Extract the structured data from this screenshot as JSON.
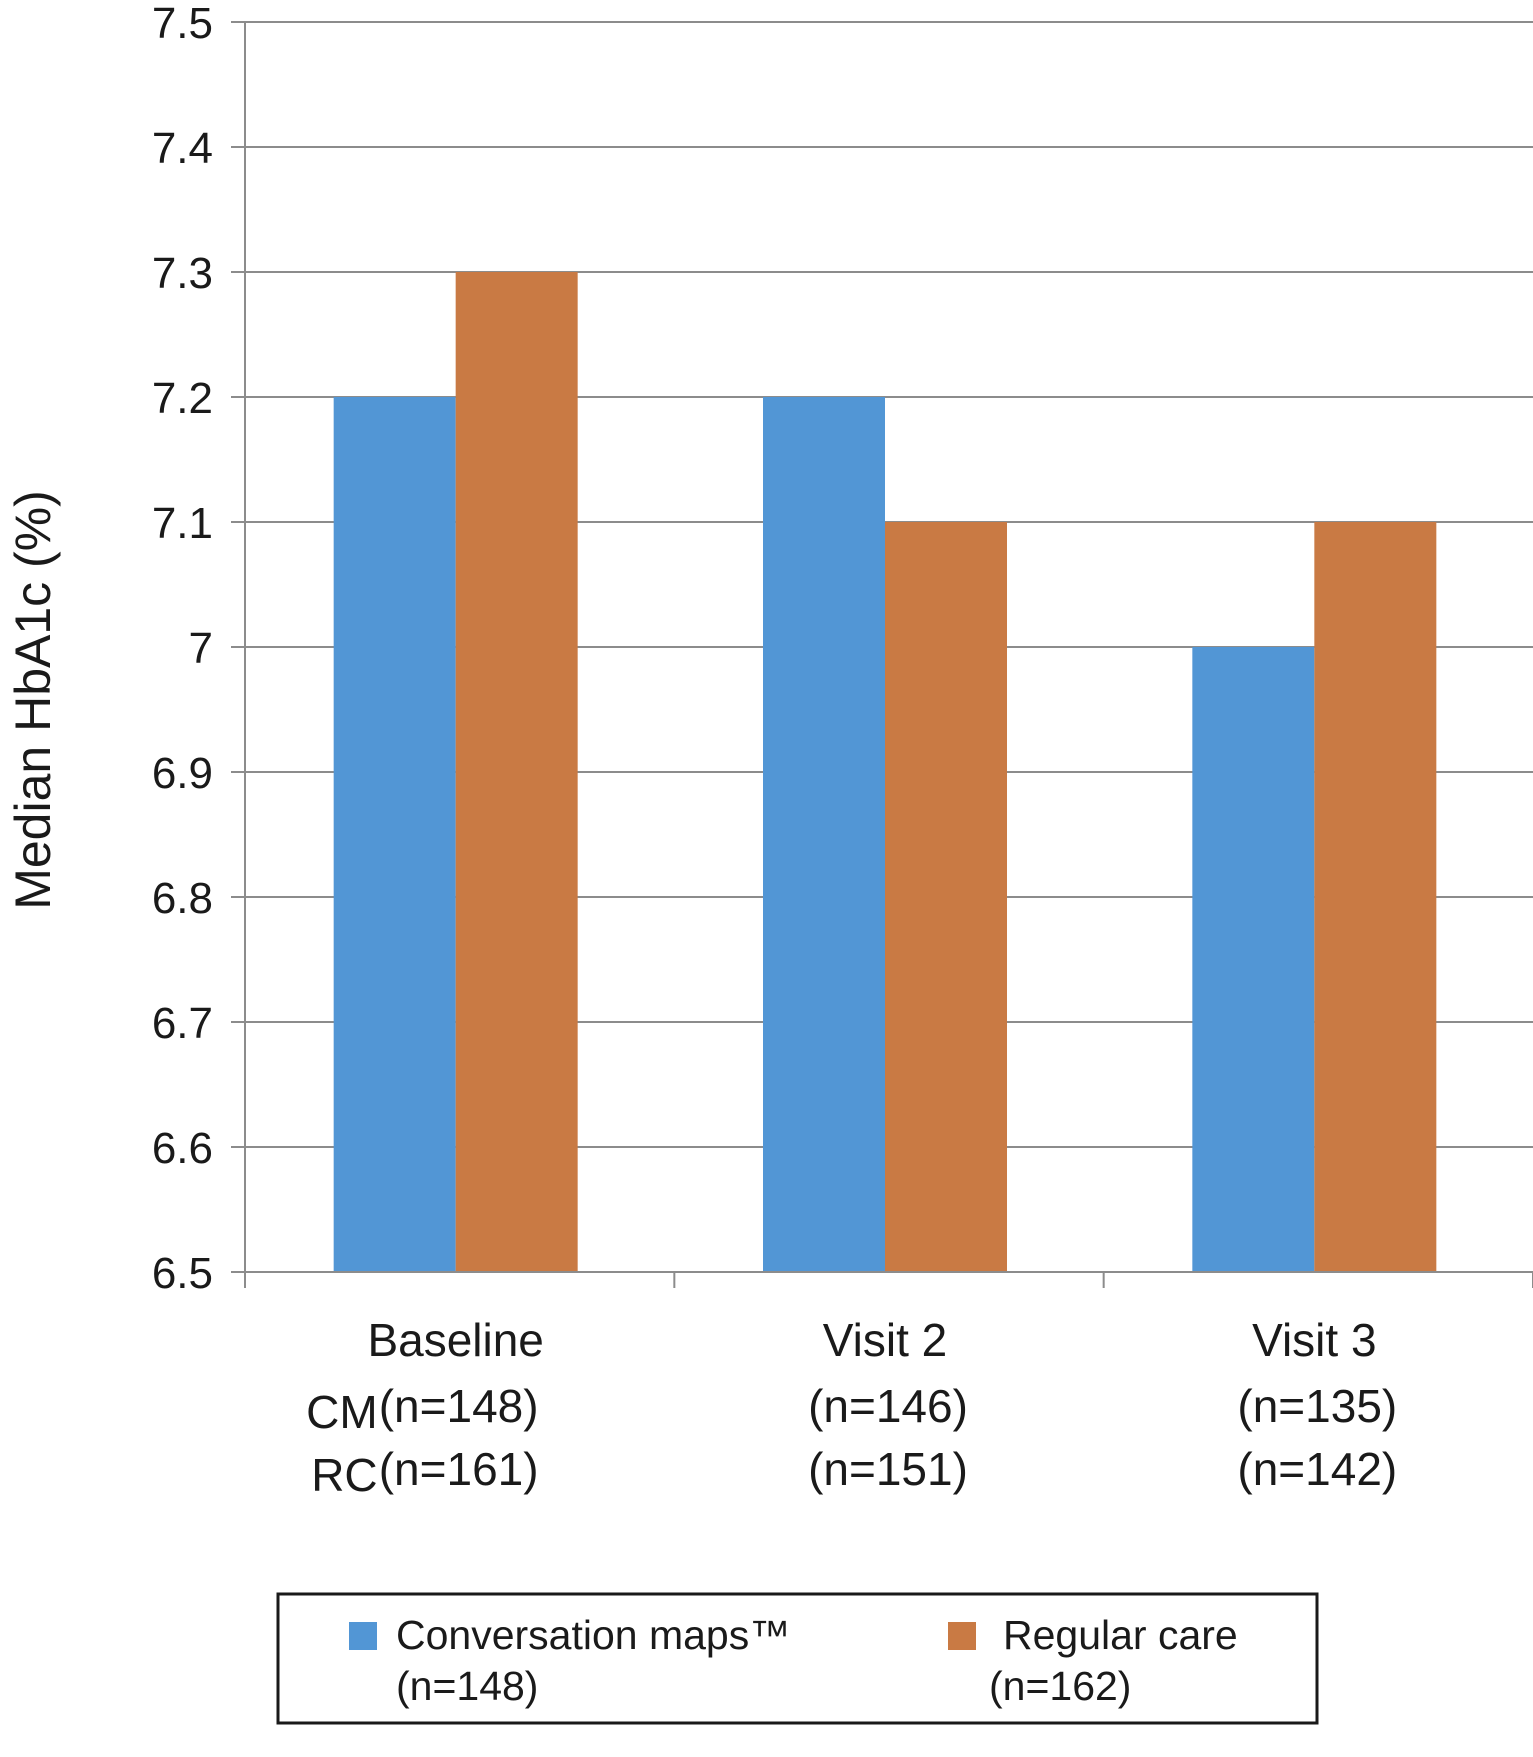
{
  "chart_data": {
    "type": "bar",
    "title": "",
    "xlabel": "",
    "ylabel": "Median HbA1c (%)",
    "ylim": [
      6.5,
      7.5
    ],
    "yticks": [
      "6.5",
      "6.6",
      "6.7",
      "6.8",
      "6.9",
      "7",
      "7.1",
      "7.2",
      "7.3",
      "7.4",
      "7.5"
    ],
    "grid": true,
    "legend_position": "bottom",
    "categories": [
      "Baseline",
      "Visit 2",
      "Visit 3"
    ],
    "category_sublabels": [
      [
        {
          "prefix": "CM",
          "text": "(n=148)"
        },
        {
          "prefix": "RC",
          "text": "(n=161)"
        }
      ],
      [
        {
          "prefix": "",
          "text": "(n=146)"
        },
        {
          "prefix": "",
          "text": "(n=151)"
        }
      ],
      [
        {
          "prefix": "",
          "text": "(n=135)"
        },
        {
          "prefix": "",
          "text": "(n=142)"
        }
      ]
    ],
    "series": [
      {
        "name": "Conversation maps™",
        "sub": "(n=148)",
        "color": "#5296D5",
        "values": [
          7.2,
          7.2,
          7.0
        ]
      },
      {
        "name": "Regular care",
        "sub": "(n=162)",
        "color": "#C97A44",
        "values": [
          7.3,
          7.1,
          7.1
        ]
      }
    ]
  }
}
